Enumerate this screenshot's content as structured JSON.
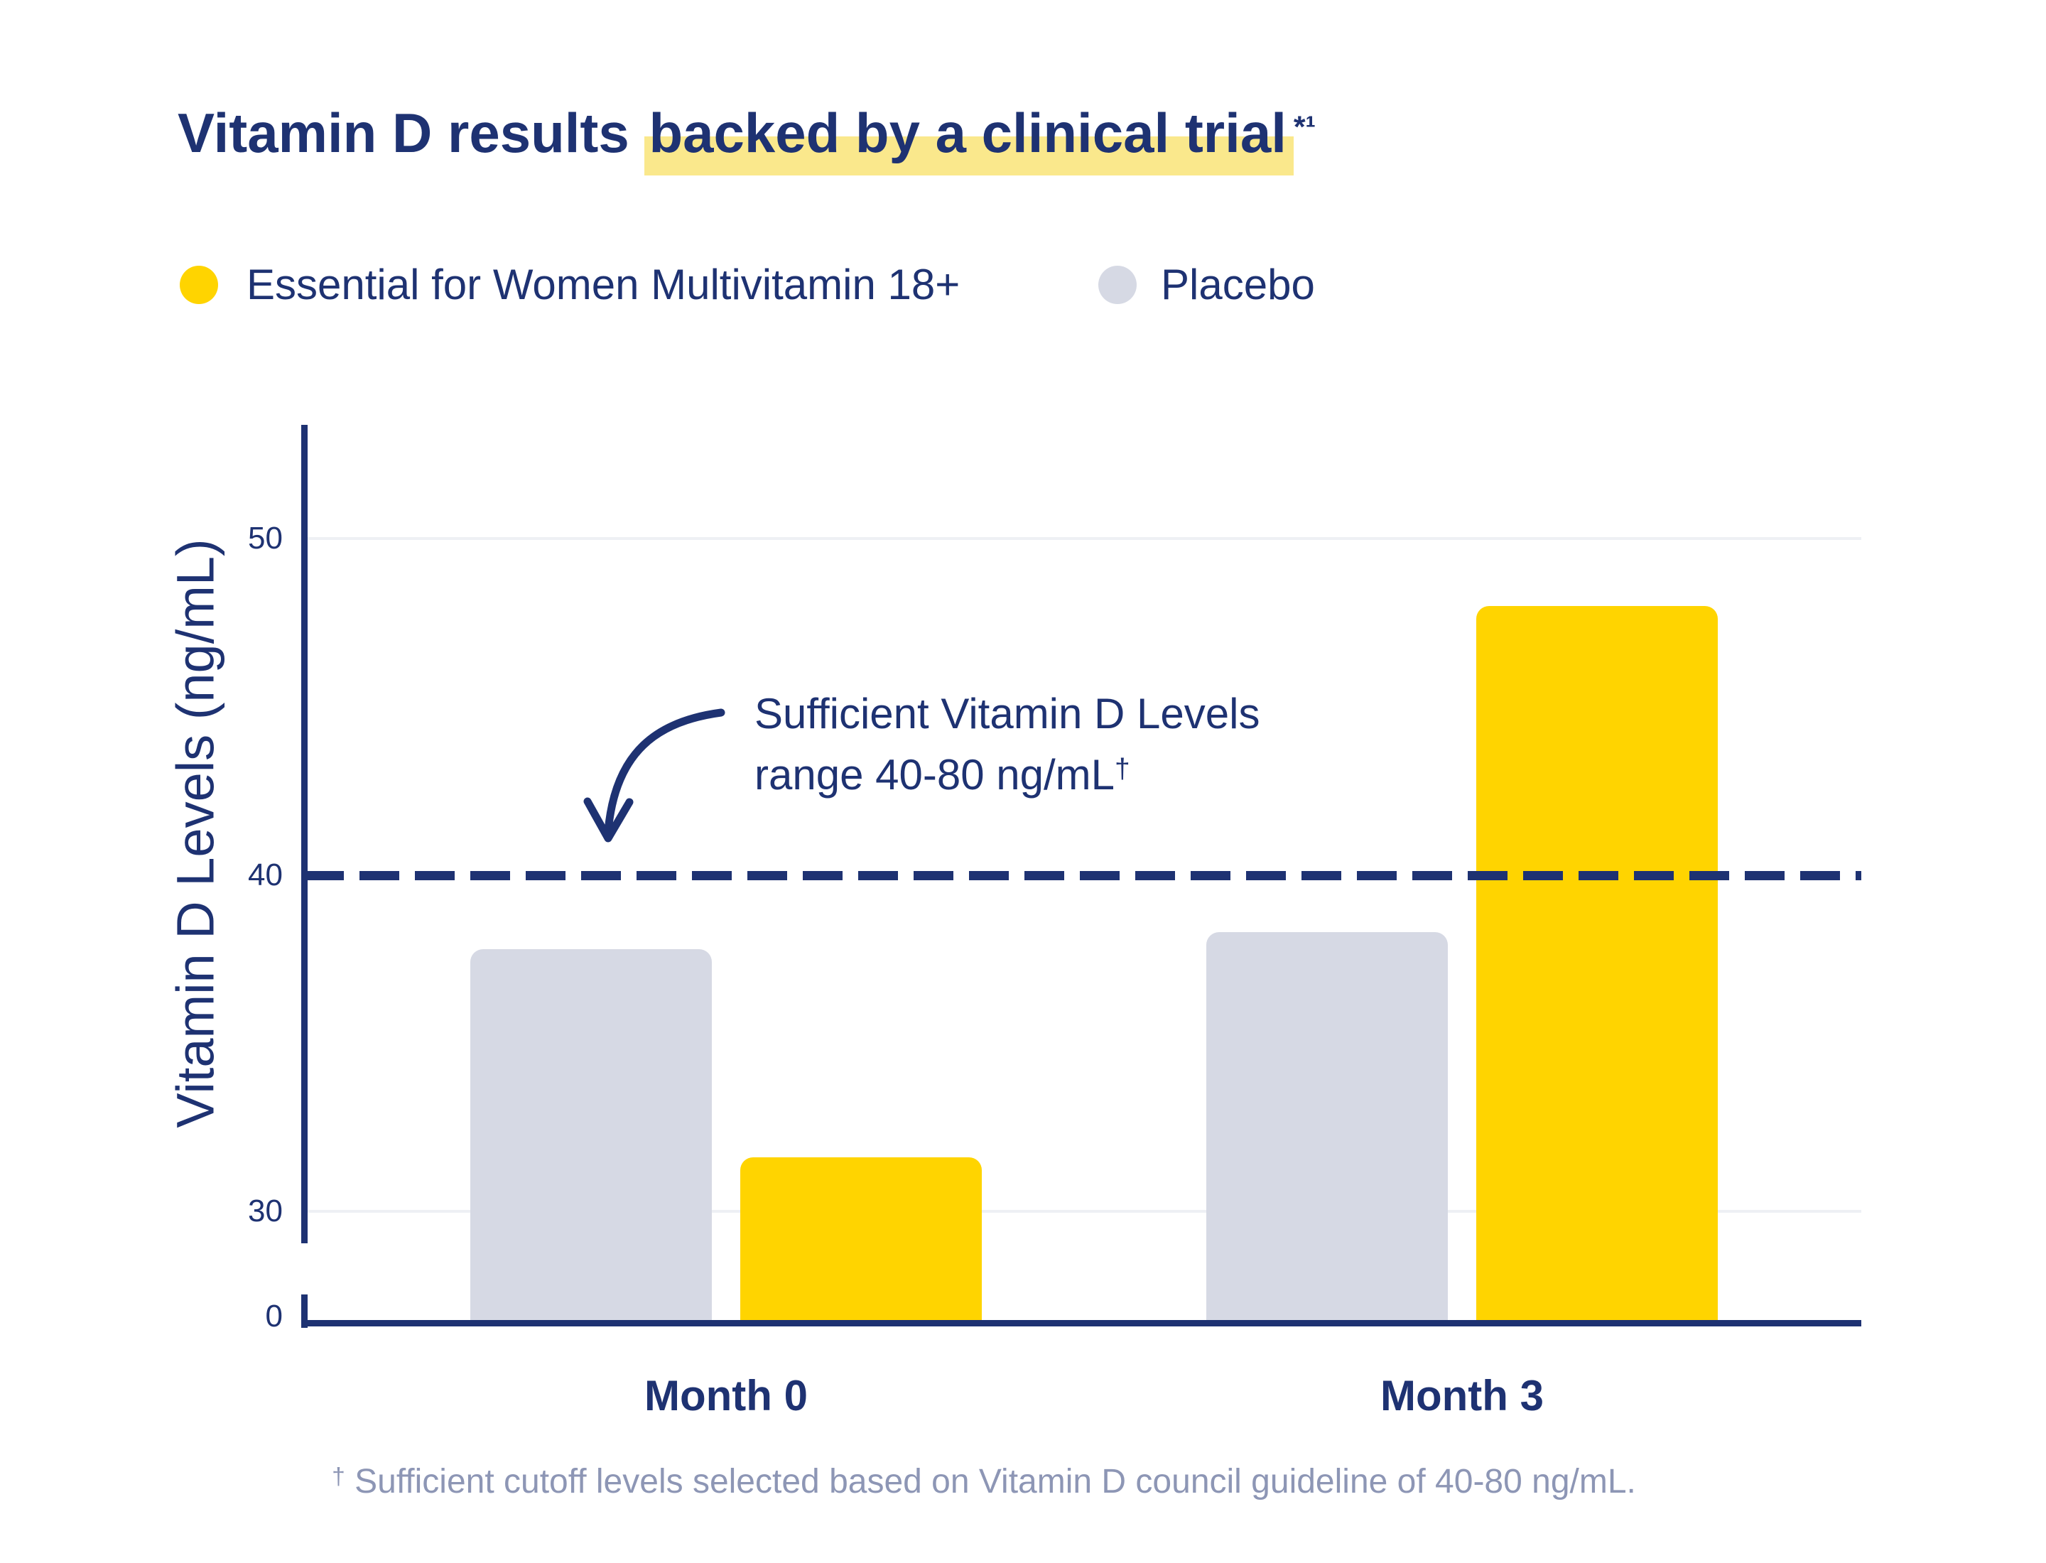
{
  "title": {
    "pre": "Vitamin D results ",
    "highlighted": "backed by a clinical trial",
    "sup": "*¹",
    "highlight_color": "#FAE88C",
    "text_color": "#1E3272"
  },
  "legend": [
    {
      "label": "Essential for Women Multivitamin 18+",
      "color": "#FFD400"
    },
    {
      "label": "Placebo",
      "color": "#D6D9E4"
    }
  ],
  "chart_data": {
    "type": "bar",
    "title": "Vitamin D results backed by a clinical trial*¹",
    "categories": [
      "Month 0",
      "Month 3"
    ],
    "series": [
      {
        "name": "Placebo",
        "color": "#D6D9E4",
        "values": [
          37.8,
          38.3
        ]
      },
      {
        "name": "Essential for Women Multivitamin 18+",
        "color": "#FFD400",
        "values": [
          31.6,
          48.0
        ]
      }
    ],
    "xlabel": "",
    "ylabel": "Vitamin D Levels (ng/mL)",
    "yticks": [
      50,
      40,
      30,
      0
    ],
    "ylim": [
      0,
      54
    ],
    "axis_break_between": [
      0,
      30
    ],
    "grid": [
      50,
      30
    ],
    "grid_on": true,
    "legend_position": "top-left",
    "threshold": {
      "value": 40,
      "style": "dashed",
      "label": "Sufficient Vitamin D Levels range 40-80 ng/mL†"
    }
  },
  "annotation": {
    "line1": "Sufficient Vitamin D Levels",
    "line2": "range 40-80 ng/mL",
    "sup": "†"
  },
  "footnote": {
    "sup": "†",
    "text": " Sufficient cutoff levels selected based on Vitamin D council guideline of 40-80 ng/mL."
  },
  "colors": {
    "navy": "#1E3272",
    "grid": "#EEF0F4",
    "footnote": "#8D96B5",
    "background": "#FFFFFF"
  }
}
